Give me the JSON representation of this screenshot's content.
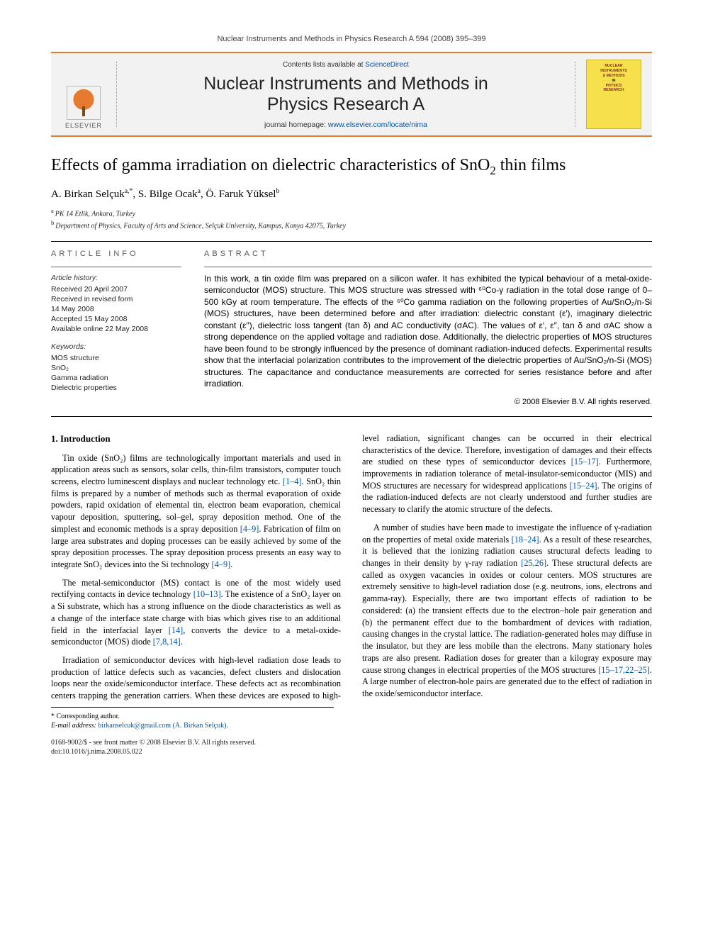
{
  "running_head": "Nuclear Instruments and Methods in Physics Research A 594 (2008) 395–399",
  "banner": {
    "publisher_logo_text": "ELSEVIER",
    "contents_prefix": "Contents lists available at ",
    "contents_link": "ScienceDirect",
    "journal_title_line1": "Nuclear Instruments and Methods in",
    "journal_title_line2": "Physics Research A",
    "homepage_prefix": "journal homepage: ",
    "homepage_link": "www.elsevier.com/locate/nima",
    "cover_lines": {
      "l1": "NUCLEAR",
      "l2": "INSTRUMENTS",
      "l3": "& METHODS",
      "l4": "IN",
      "l5": "PHYSICS",
      "l6": "RESEARCH"
    }
  },
  "article": {
    "title_pre": "Effects of gamma irradiation on dielectric characteristics of SnO",
    "title_sub": "2",
    "title_post": " thin films",
    "authors_html": "A. Birkan Selçuk",
    "author1_sup": "a,*",
    "author2": ", S. Bilge Ocak",
    "author2_sup": "a",
    "author3": ", Ö. Faruk Yüksel",
    "author3_sup": "b",
    "aff_a": "PK 14 Etlik, Ankara, Turkey",
    "aff_b": "Department of Physics, Faculty of Arts and Science, Selçuk University, Kampus, Konya 42075, Turkey"
  },
  "info": {
    "heading": "article info",
    "history_head": "Article history:",
    "received": "Received 20 April 2007",
    "revised1": "Received in revised form",
    "revised2": "14 May 2008",
    "accepted": "Accepted 15 May 2008",
    "online": "Available online 22 May 2008",
    "keywords_head": "Keywords:",
    "kw1": "MOS structure",
    "kw2": "SnO₂",
    "kw3": "Gamma radiation",
    "kw4": "Dielectric properties"
  },
  "abstract": {
    "heading": "abstract",
    "text": "In this work, a tin oxide film was prepared on a silicon wafer. It has exhibited the typical behaviour of a metal-oxide-semiconductor (MOS) structure. This MOS structure was stressed with ⁶⁰Co-γ radiation in the total dose range of 0–500 kGy at room temperature. The effects of the ⁶⁰Co gamma radiation on the following properties of Au/SnO₂/n-Si (MOS) structures, have been determined before and after irradiation: dielectric constant (ε′), imaginary dielectric constant (ε″), dielectric loss tangent (tan δ) and AC conductivity (σAC). The values of ε′, ε″, tan δ and σAC show a strong dependence on the applied voltage and radiation dose. Additionally, the dielectric properties of MOS structures have been found to be strongly influenced by the presence of dominant radiation-induced defects. Experimental results show that the interfacial polarization contributes to the improvement of the dielectric properties of Au/SnO₂/n-Si (MOS) structures. The capacitance and conductance measurements are corrected for series resistance before and after irradiation.",
    "copyright": "© 2008 Elsevier B.V. All rights reserved."
  },
  "body": {
    "h_intro": "1.  Introduction",
    "p1a": "Tin oxide (SnO₂) films are technologically important materials and used in application areas such as sensors, solar cells, thin-film transistors, computer touch screens, electro luminescent displays and nuclear technology etc. ",
    "r1": "[1–4]",
    "p1b": ". SnO₂ thin films is prepared by a number of methods such as thermal evaporation of oxide powders, rapid oxidation of elemental tin, electron beam evaporation, chemical vapour deposition, sputtering, sol–gel, spray deposition method. One of the simplest and economic methods is a spray deposition ",
    "r2": "[4–9]",
    "p1c": ". Fabrication of film on large area substrates and doping processes can be easily achieved by some of the spray deposition processes. The spray deposition process presents an easy way to integrate SnO₂ devices into the Si technology ",
    "r3": "[4–9]",
    "p1d": ".",
    "p2a": "The metal-semiconductor (MS) contact is one of the most widely used rectifying contacts in device technology ",
    "r4": "[10–13]",
    "p2b": ". The existence of a SnO₂ layer on a Si substrate, which has a strong influence on the diode characteristics as well as a change of the interface state charge with bias which gives rise to an additional field in the interfacial layer ",
    "r5": "[14]",
    "p2c": ", converts the device to a metal-oxide-semiconductor (MOS) diode ",
    "r6": "[7,8,14]",
    "p2d": ".",
    "p3a": "Irradiation of semiconductor devices with high-level radiation dose leads to production of lattice defects such as vacancies, defect clusters and dislocation loops near the oxide/semiconductor interface. These defects act as recombination centers trapping the generation carriers. When these devices are exposed to high-level radiation, significant changes can be occurred in their electrical characteristics of the device. Therefore, investigation of damages and their effects are studied on these types of semiconductor devices ",
    "r7": "[15–17]",
    "p3b": ". Furthermore, improvements in radiation tolerance of metal-insulator-semiconductor (MIS) and MOS structures are necessary for widespread applications ",
    "r8": "[15–24]",
    "p3c": ". The origins of the radiation-induced defects are not clearly understood and further studies are necessary to clarify the atomic structure of the defects.",
    "p4a": "A number of studies have been made to investigate the influence of γ-radiation on the properties of metal oxide materials ",
    "r9": "[18–24]",
    "p4b": ". As a result of these researches, it is believed that the ionizing radiation causes structural defects leading to changes in their density by γ-ray radiation ",
    "r10": "[25,26]",
    "p4c": ". These structural defects are called as oxygen vacancies in oxides or colour centers. MOS structures are extremely sensitive to high-level radiation dose (e.g. neutrons, ions, electrons and gamma-ray). Especially, there are two important effects of radiation to be considered: (a) the transient effects due to the electron–hole pair generation and (b) the permanent effect due to the bombardment of devices with radiation, causing changes in the crystal lattice. The radiation-generated holes may diffuse in the insulator, but they are less mobile than the electrons. Many stationary holes traps are also present. Radiation doses for greater than a kilogray exposure may cause strong changes in electrical properties of the MOS structures ",
    "r11": "[15–17,22–25]",
    "p4d": ". A large number of electron-hole pairs are generated due to the effect of radiation in the oxide/semiconductor interface."
  },
  "footnotes": {
    "corr": "* Corresponding author.",
    "email_label": "E-mail address: ",
    "email": "birkanselcuk@gmail.com (A. Birkan Selçuk).",
    "front1": "0168-9002/$ - see front matter © 2008 Elsevier B.V. All rights reserved.",
    "front2": "doi:10.1016/j.nima.2008.05.022"
  },
  "colors": {
    "accent_orange": "#e67a2e",
    "link_blue": "#0054a6",
    "banner_bg": "#f2f2f2",
    "cover_bg": "#f6e04b"
  }
}
